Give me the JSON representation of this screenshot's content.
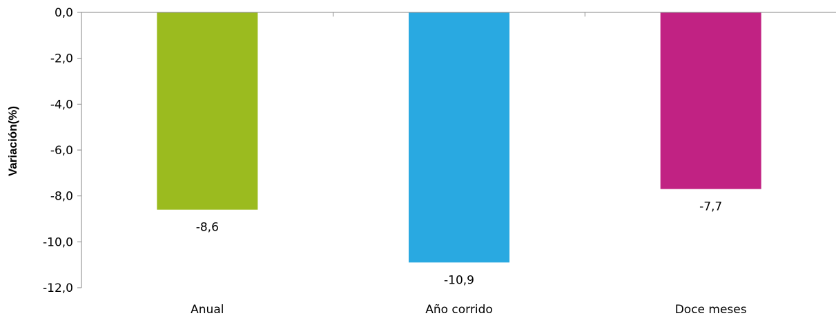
{
  "chart_data": {
    "type": "bar",
    "categories": [
      "Anual",
      "Año corrido",
      "Doce meses"
    ],
    "values": [
      -8.6,
      -10.9,
      -7.7
    ],
    "value_labels": [
      "-8,6",
      "-10,9",
      "-7,7"
    ],
    "colors": [
      "#9BBB1F",
      "#29A9E1",
      "#C12283"
    ],
    "ylabel": "Variación(%)",
    "ylim": [
      -12,
      0
    ],
    "yticks": [
      0,
      -2,
      -4,
      -6,
      -8,
      -10,
      -12
    ],
    "ytick_labels": [
      "0,0",
      "-2,0",
      "-4,0",
      "-6,0",
      "-8,0",
      "-10,0",
      "-12,0"
    ],
    "grid": false,
    "legend": "none"
  }
}
